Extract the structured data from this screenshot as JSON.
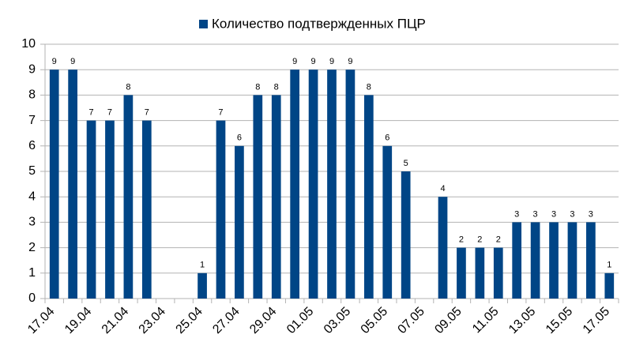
{
  "chart_data": {
    "type": "bar",
    "categories": [
      "17.04",
      null,
      "19.04",
      null,
      "21.04",
      null,
      "23.04",
      null,
      "25.04",
      null,
      "27.04",
      null,
      "29.04",
      null,
      "01.05",
      null,
      "03.05",
      null,
      "05.05",
      null,
      "07.05",
      null,
      "09.05",
      null,
      "11.05",
      null,
      "13.05",
      null,
      "15.05",
      null,
      "17.05"
    ],
    "series": [
      {
        "name": "Количество подтвержденных ПЦР",
        "color": "#004586",
        "values": [
          9,
          9,
          7,
          7,
          8,
          7,
          null,
          null,
          1,
          7,
          6,
          8,
          8,
          9,
          9,
          9,
          9,
          8,
          6,
          5,
          null,
          4,
          2,
          2,
          2,
          3,
          3,
          3,
          3,
          3,
          1
        ]
      }
    ],
    "ylim": [
      0,
      10
    ],
    "yticks": [
      0,
      1,
      2,
      3,
      4,
      5,
      6,
      7,
      8,
      9,
      10
    ],
    "grid": true,
    "legend": "top"
  }
}
